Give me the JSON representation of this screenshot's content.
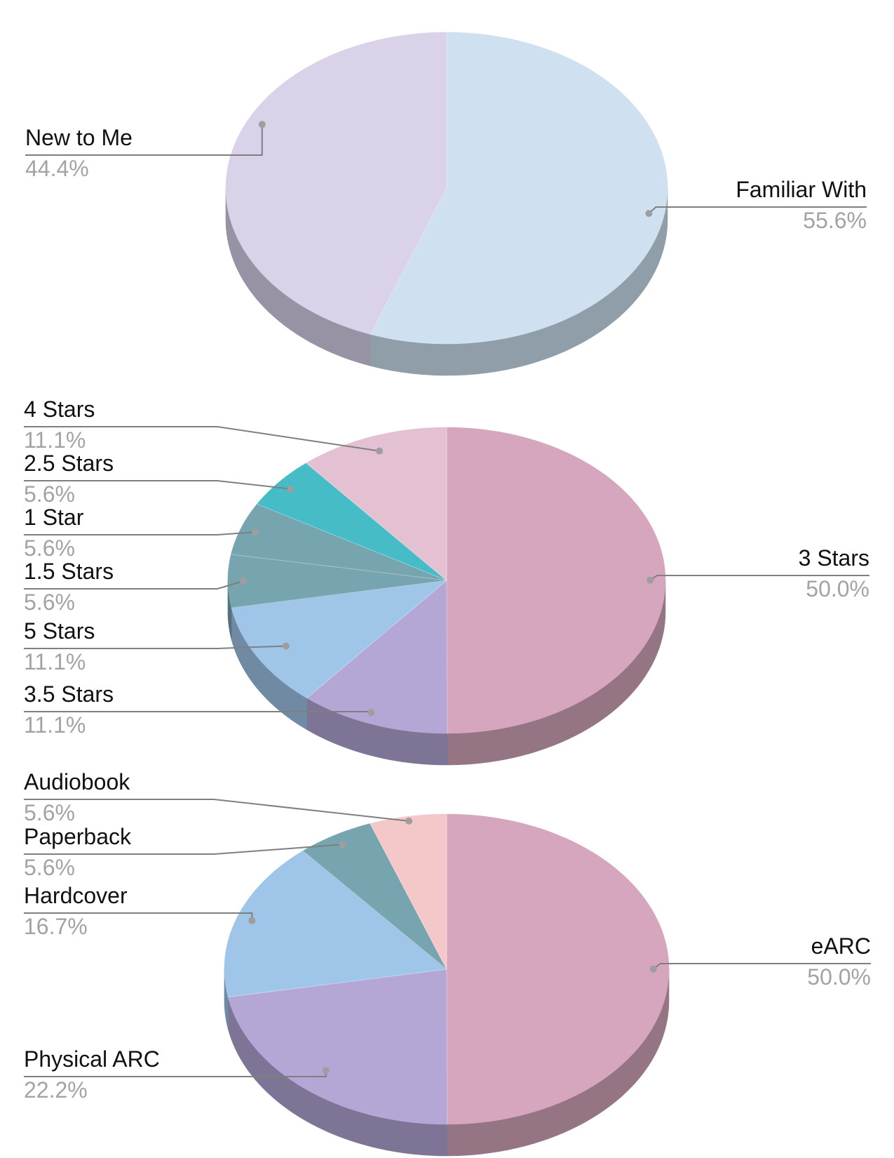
{
  "chart_data": [
    {
      "type": "pie",
      "style": "3d",
      "slices": [
        {
          "label": "Familiar With",
          "value": 55.6,
          "pct_label": "55.6%",
          "color": "#cfe0f1",
          "side_color": "#8f9ea8"
        },
        {
          "label": "New to Me",
          "value": 44.4,
          "pct_label": "44.4%",
          "color": "#d9d2e9",
          "side_color": "#9893a4"
        }
      ]
    },
    {
      "type": "pie",
      "style": "3d",
      "slices": [
        {
          "label": "3 Stars",
          "value": 50.0,
          "pct_label": "50.0%",
          "color": "#d5a6bd",
          "side_color": "#957584"
        },
        {
          "label": "3.5 Stars",
          "value": 11.1,
          "pct_label": "11.1%",
          "color": "#b4a7d6",
          "side_color": "#7e7596"
        },
        {
          "label": "5 Stars",
          "value": 11.1,
          "pct_label": "11.1%",
          "color": "#9fc5e8",
          "side_color": "#6f8aa2"
        },
        {
          "label": "1.5 Stars",
          "value": 5.6,
          "pct_label": "5.6%",
          "color": "#76a5af",
          "side_color": "#53737a"
        },
        {
          "label": "1 Star",
          "value": 5.6,
          "pct_label": "5.6%",
          "color": "#76a5af",
          "side_color": "#53737a"
        },
        {
          "label": "2.5 Stars",
          "value": 5.6,
          "pct_label": "5.6%",
          "color": "#46bdc6",
          "side_color": "#31848b"
        },
        {
          "label": "4 Stars",
          "value": 11.1,
          "pct_label": "11.1%",
          "color": "#e3c1d2",
          "side_color": "#9e8793"
        }
      ]
    },
    {
      "type": "pie",
      "style": "3d",
      "slices": [
        {
          "label": "eARC",
          "value": 50.0,
          "pct_label": "50.0%",
          "color": "#d5a6bd",
          "side_color": "#957584"
        },
        {
          "label": "Physical ARC",
          "value": 22.2,
          "pct_label": "22.2%",
          "color": "#b4a7d6",
          "side_color": "#7e7596"
        },
        {
          "label": "Hardcover",
          "value": 16.7,
          "pct_label": "16.7%",
          "color": "#9fc5e8",
          "side_color": "#6f8aa2"
        },
        {
          "label": "Paperback",
          "value": 5.6,
          "pct_label": "5.6%",
          "color": "#76a5af",
          "side_color": "#53737a"
        },
        {
          "label": "Audiobook",
          "value": 5.6,
          "pct_label": "5.6%",
          "color": "#f4c7c8",
          "side_color": "#ab8b8c"
        }
      ]
    }
  ],
  "colors": {
    "leader_line": "#7f7f7f",
    "leader_dot": "#9e9e9e",
    "label_text": "#111111",
    "pct_text": "#a3a3a3"
  }
}
